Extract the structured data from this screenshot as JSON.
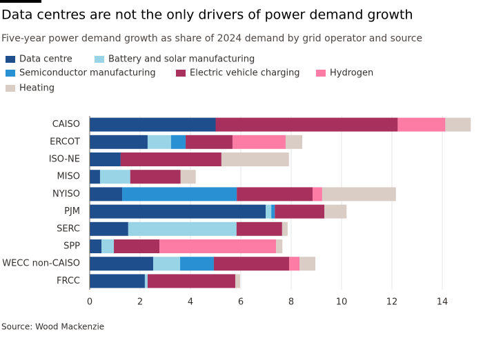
{
  "chart_data": {
    "type": "stacked-bar-horizontal",
    "title": "Data centres are not the only drivers of power demand growth",
    "subtitle": "Five-year power demand growth as share of 2024 demand by grid operator and source",
    "source": "Source: Wood Mackenzie",
    "categories": [
      "CAISO",
      "ERCOT",
      "ISO-NE",
      "MISO",
      "NYISO",
      "PJM",
      "SERC",
      "SPP",
      "WECC non-CAISO",
      "FRCC"
    ],
    "series": [
      {
        "name": "Data centre",
        "color": "#1f4e8c",
        "values": [
          5.0,
          2.3,
          1.23,
          0.41,
          1.29,
          6.99,
          1.53,
          0.47,
          2.52,
          2.19
        ]
      },
      {
        "name": "Battery and solar manufacturing",
        "color": "#98d3e6",
        "values": [
          0,
          0.93,
          0,
          1.2,
          0,
          0.22,
          4.3,
          0.49,
          1.07,
          0.11
        ]
      },
      {
        "name": "Semiconductor manufacturing",
        "color": "#2a90d4",
        "values": [
          0,
          0.58,
          0,
          0,
          4.55,
          0.14,
          0,
          0,
          1.34,
          0
        ]
      },
      {
        "name": "Electric vehicle charging",
        "color": "#a7305c",
        "values": [
          7.23,
          1.86,
          4.0,
          2.0,
          3.01,
          1.97,
          1.81,
          1.81,
          2.99,
          3.48
        ]
      },
      {
        "name": "Hydrogen",
        "color": "#fc7ca6",
        "values": [
          1.89,
          2.11,
          0,
          0,
          0.38,
          0,
          0,
          4.63,
          0.41,
          0
        ]
      },
      {
        "name": "Heating",
        "color": "#dacdc6",
        "values": [
          1.01,
          0.66,
          2.68,
          0.6,
          2.93,
          0.88,
          0.22,
          0.25,
          0.63,
          0.19
        ]
      }
    ],
    "xlim": [
      0,
      15.3
    ],
    "xticks": [
      0,
      2,
      4,
      6,
      8,
      10,
      12,
      14
    ],
    "grid": true
  }
}
